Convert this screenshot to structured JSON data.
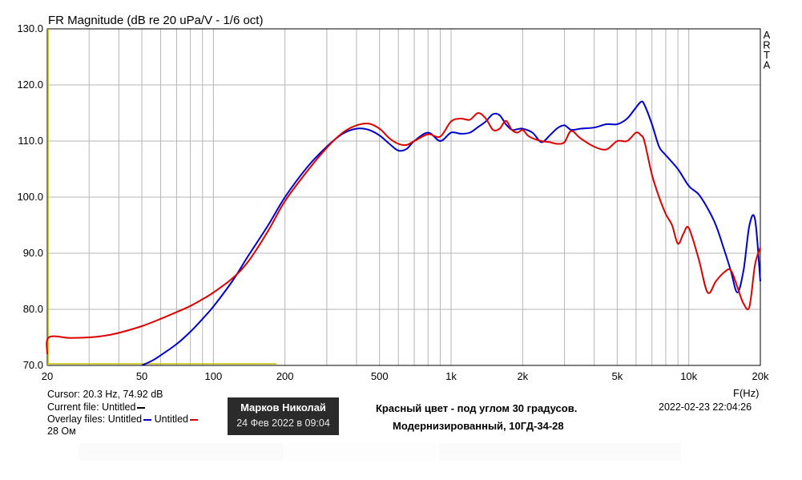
{
  "chart_data": {
    "type": "line",
    "title": "FR Magnitude (dB re 20 uPa/V - 1/6 oct)",
    "watermark": [
      "A",
      "R",
      "T",
      "A"
    ],
    "xlabel": "F(Hz)",
    "xscale": "log",
    "xlim": [
      20,
      20000
    ],
    "ylim": [
      70,
      130
    ],
    "grid": true,
    "x_ticks": [
      {
        "value": 20,
        "label": "20"
      },
      {
        "value": 50,
        "label": "50"
      },
      {
        "value": 100,
        "label": "100"
      },
      {
        "value": 200,
        "label": "200"
      },
      {
        "value": 500,
        "label": "500"
      },
      {
        "value": 1000,
        "label": "1k"
      },
      {
        "value": 2000,
        "label": "2k"
      },
      {
        "value": 5000,
        "label": "5k"
      },
      {
        "value": 10000,
        "label": "10k"
      },
      {
        "value": 20000,
        "label": "20k"
      }
    ],
    "y_ticks": [
      {
        "value": 70,
        "label": "70.0"
      },
      {
        "value": 80,
        "label": "80.0"
      },
      {
        "value": 90,
        "label": "90.0"
      },
      {
        "value": 100,
        "label": "100.0"
      },
      {
        "value": 110,
        "label": "110.0"
      },
      {
        "value": 120,
        "label": "120.0"
      },
      {
        "value": 130,
        "label": "130.0"
      }
    ],
    "series": [
      {
        "name": "Untitled",
        "color": "#0000cc",
        "x": [
          50,
          55,
          60,
          70,
          80,
          90,
          100,
          120,
          140,
          170,
          200,
          250,
          300,
          350,
          400,
          450,
          500,
          550,
          600,
          650,
          700,
          800,
          900,
          1000,
          1100,
          1200,
          1300,
          1400,
          1500,
          1600,
          1700,
          1800,
          1900,
          2000,
          2200,
          2400,
          2600,
          2800,
          3000,
          3200,
          3500,
          4000,
          4500,
          5000,
          5500,
          6000,
          6300,
          6500,
          7000,
          7500,
          8000,
          9000,
          10000,
          11000,
          12000,
          13000,
          14000,
          15000,
          16000,
          17000,
          18000,
          19000,
          20000
        ],
        "values": [
          70.0,
          70.8,
          71.8,
          73.8,
          76.0,
          78.3,
          80.5,
          85.0,
          89.5,
          95.0,
          100.0,
          105.5,
          109.0,
          111.3,
          112.2,
          112.0,
          111.0,
          109.5,
          108.3,
          108.6,
          110.0,
          111.5,
          110.0,
          111.5,
          111.3,
          111.5,
          112.5,
          113.5,
          114.8,
          114.6,
          113.0,
          112.0,
          112.1,
          112.2,
          111.5,
          109.8,
          111.0,
          112.3,
          112.8,
          112.0,
          112.2,
          112.4,
          113.0,
          113.0,
          114.0,
          116.0,
          117.0,
          116.5,
          113.0,
          109.0,
          107.5,
          105.0,
          102.0,
          100.5,
          98.0,
          95.0,
          91.0,
          87.0,
          83.0,
          87.0,
          95.0,
          96.0,
          85.0
        ]
      },
      {
        "name": "Untitled",
        "color": "#dd0000",
        "x": [
          20,
          20.3,
          25,
          30,
          35,
          40,
          50,
          60,
          70,
          80,
          90,
          100,
          120,
          140,
          170,
          200,
          250,
          300,
          350,
          400,
          450,
          500,
          550,
          600,
          650,
          700,
          800,
          900,
          1000,
          1100,
          1200,
          1300,
          1400,
          1500,
          1600,
          1700,
          1800,
          1900,
          2000,
          2100,
          2200,
          2400,
          2600,
          2800,
          3000,
          3200,
          3500,
          4000,
          4500,
          5000,
          5500,
          6000,
          6300,
          6500,
          7000,
          7500,
          8000,
          8500,
          9000,
          9500,
          10000,
          11000,
          12000,
          13000,
          14000,
          15000,
          16000,
          17000,
          18000,
          19000,
          20000
        ],
        "values": [
          72.0,
          75.0,
          74.9,
          75.0,
          75.3,
          75.8,
          77.0,
          78.3,
          79.5,
          80.6,
          81.8,
          83.0,
          85.5,
          88.5,
          94.0,
          99.3,
          104.8,
          108.8,
          111.5,
          112.8,
          113.1,
          112.2,
          110.5,
          109.5,
          109.3,
          110.0,
          111.2,
          110.8,
          113.5,
          114.0,
          113.8,
          115.0,
          114.0,
          112.0,
          112.2,
          113.6,
          112.0,
          111.5,
          112.0,
          111.0,
          110.5,
          110.0,
          109.8,
          109.5,
          109.8,
          111.8,
          110.5,
          109.0,
          108.5,
          110.0,
          110.0,
          111.5,
          111.0,
          110.0,
          104.0,
          100.0,
          97.0,
          95.0,
          91.7,
          93.5,
          94.5,
          89.0,
          83.0,
          85.0,
          86.5,
          87.0,
          84.0,
          81.0,
          80.5,
          88.0,
          91.0
        ]
      }
    ]
  },
  "info": {
    "cursor": "Cursor: 20.3 Hz, 74.92 dB",
    "current_file": "Current file: Untitled",
    "overlay_prefix": "Overlay files:",
    "overlay_1": "Untitled",
    "overlay_2": "Untitled",
    "impedance": "28 Ом",
    "datetime": "2022-02-23   22:04:26"
  },
  "badge": {
    "name": "Марков Николай",
    "date": "24 Фев 2022 в 09:04"
  },
  "note": {
    "line1": "Красный цвет - под углом 30 градусов.",
    "line2": "Модернизированный, 10ГД-34-28"
  }
}
